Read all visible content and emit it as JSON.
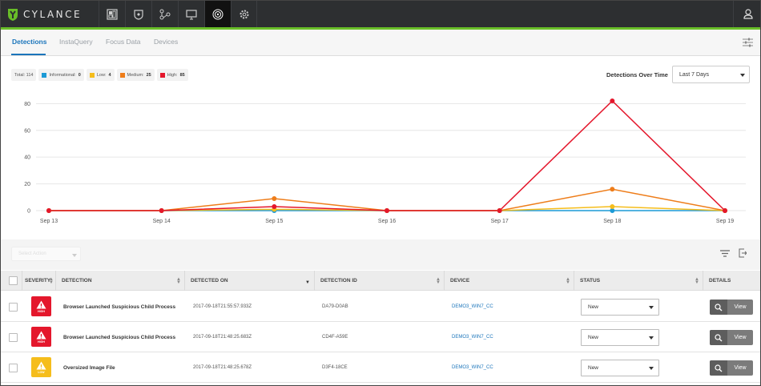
{
  "app": {
    "name": "CYLANCE",
    "nav_icons": [
      "dashboard-icon",
      "protection-shield-icon",
      "network-icon",
      "monitor-icon",
      "optics-fingerprint-icon",
      "settings-gear-icon"
    ],
    "active_nav": "optics-fingerprint-icon",
    "user_icon": "user-icon",
    "accent_color": "#69be28"
  },
  "tabs": [
    {
      "label": "Detections",
      "active": true
    },
    {
      "label": "InstaQuery",
      "active": false
    },
    {
      "label": "Focus Data",
      "active": false
    },
    {
      "label": "Devices",
      "active": false
    }
  ],
  "legend": {
    "total_label": "Total: 114",
    "items": [
      {
        "label": "Informational:",
        "count": "0",
        "color": "#1c9ad6"
      },
      {
        "label": "Low:",
        "count": "4",
        "color": "#f5bd1c"
      },
      {
        "label": "Medium:",
        "count": "25",
        "color": "#ee7d1a"
      },
      {
        "label": "High:",
        "count": "85",
        "color": "#e4172c"
      }
    ]
  },
  "detections_over_time": {
    "label": "Detections Over Time",
    "range_value": "Last 7 Days"
  },
  "chart_data": {
    "type": "line",
    "x": [
      "Sep 13",
      "Sep 14",
      "Sep 15",
      "Sep 16",
      "Sep 17",
      "Sep 18",
      "Sep 19"
    ],
    "ylim": [
      0,
      85
    ],
    "yticks": [
      0,
      20,
      40,
      60,
      80
    ],
    "grid": true,
    "series": [
      {
        "name": "Informational",
        "color": "#1c9ad6",
        "values": [
          0,
          0,
          0,
          0,
          0,
          0,
          0
        ]
      },
      {
        "name": "Low",
        "color": "#f5bd1c",
        "values": [
          0,
          0,
          1,
          0,
          0,
          3,
          0
        ]
      },
      {
        "name": "Medium",
        "color": "#ee7d1a",
        "values": [
          0,
          0,
          9,
          0,
          0,
          16,
          0
        ]
      },
      {
        "name": "High",
        "color": "#e4172c",
        "values": [
          0,
          0,
          3,
          0,
          0,
          82,
          0
        ]
      }
    ]
  },
  "bulk": {
    "select_placeholder": "Select Action"
  },
  "table": {
    "headers": {
      "severity": "SEVERITY",
      "detection": "DETECTION",
      "detected_on": "DETECTED ON",
      "detection_id": "DETECTION ID",
      "device": "DEVICE",
      "status": "STATUS",
      "details": "DETAILS"
    },
    "rows": [
      {
        "severity": "HIGH",
        "severity_color": "#e4172c",
        "detection": "Browser Launched Suspicious Child Process",
        "detected_on": "2017-09-18T21:55:57.933Z",
        "detection_id": "DA79-D0AB",
        "device": "DEMO3_WIN7_CC",
        "status": "New",
        "action": "View"
      },
      {
        "severity": "HIGH",
        "severity_color": "#e4172c",
        "detection": "Browser Launched Suspicious Child Process",
        "detected_on": "2017-09-18T21:48:25.683Z",
        "detection_id": "CD4F-A59E",
        "device": "DEMO3_WIN7_CC",
        "status": "New",
        "action": "View"
      },
      {
        "severity": "LOW",
        "severity_color": "#f5bd1c",
        "detection": "Oversized Image File",
        "detected_on": "2017-09-18T21:48:25.678Z",
        "detection_id": "D3F4-18CE",
        "device": "DEMO3_WIN7_CC",
        "status": "New",
        "action": "View"
      }
    ]
  }
}
